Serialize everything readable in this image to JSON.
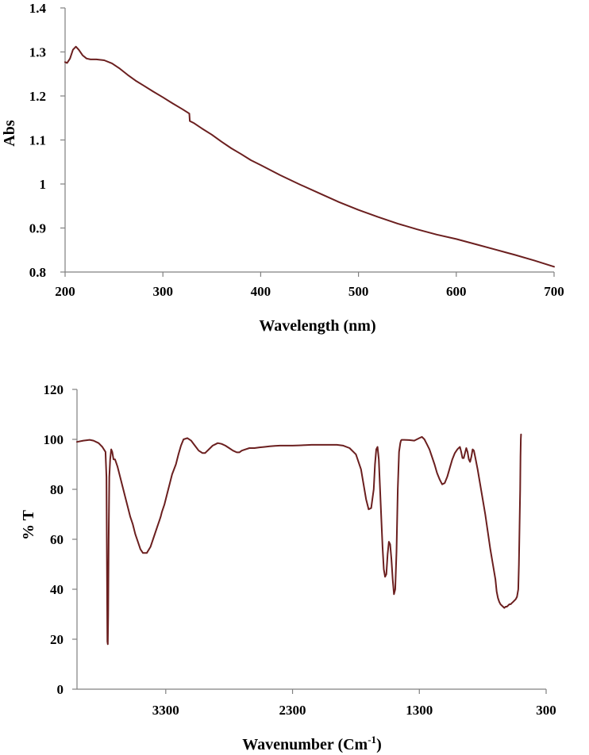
{
  "colors": {
    "series": "#6b1f1f",
    "axis": "#808080",
    "text": "#000000"
  },
  "chart_data": [
    {
      "type": "line",
      "title": "",
      "xlabel": "Wavelength (nm)",
      "ylabel": "Abs",
      "xlim": [
        200,
        700
      ],
      "ylim": [
        0.8,
        1.4
      ],
      "xticks": [
        200,
        300,
        400,
        500,
        600,
        700
      ],
      "yticks": [
        0.8,
        0.9,
        1.0,
        1.1,
        1.2,
        1.3,
        1.4
      ],
      "xtick_labels": [
        "200",
        "300",
        "400",
        "500",
        "600",
        "700"
      ],
      "ytick_labels": [
        "0.8",
        "0.9",
        "1",
        "1.1",
        "1.2",
        "1.3",
        "1.4"
      ],
      "grid": false,
      "legend": "none",
      "series": [
        {
          "x": [
            200,
            202,
            205,
            208,
            211,
            214,
            218,
            222,
            226,
            232,
            240,
            248,
            256,
            264,
            272,
            280,
            290,
            300,
            310,
            320,
            327,
            327.5,
            332,
            340,
            350,
            360,
            370,
            380,
            390,
            400,
            420,
            440,
            460,
            480,
            500,
            520,
            540,
            560,
            580,
            600,
            620,
            640,
            660,
            680,
            700
          ],
          "y": [
            1.277,
            1.275,
            1.285,
            1.305,
            1.312,
            1.305,
            1.292,
            1.285,
            1.283,
            1.283,
            1.281,
            1.274,
            1.262,
            1.248,
            1.235,
            1.224,
            1.21,
            1.197,
            1.183,
            1.17,
            1.16,
            1.143,
            1.138,
            1.126,
            1.112,
            1.096,
            1.081,
            1.068,
            1.054,
            1.043,
            1.02,
            0.999,
            0.979,
            0.959,
            0.941,
            0.925,
            0.91,
            0.897,
            0.885,
            0.875,
            0.863,
            0.851,
            0.839,
            0.826,
            0.812
          ]
        }
      ]
    },
    {
      "type": "line",
      "title": "",
      "xlabel": "Wavenumber (Cm",
      "xlabel_sup": "-1",
      "xlabel_close": ")",
      "ylabel": "% T",
      "xlim": [
        4000,
        300
      ],
      "ylim": [
        0,
        120
      ],
      "xticks": [
        3300,
        2300,
        1300,
        300
      ],
      "yticks": [
        0,
        20,
        40,
        60,
        80,
        100,
        120
      ],
      "xtick_labels": [
        "3300",
        "2300",
        "1300",
        "300"
      ],
      "ytick_labels": [
        "0",
        "20",
        "40",
        "60",
        "80",
        "100",
        "120"
      ],
      "grid": false,
      "legend": "none",
      "series": [
        {
          "x": [
            4000,
            3950,
            3900,
            3870,
            3830,
            3800,
            3775,
            3768,
            3763,
            3760,
            3757,
            3754,
            3750,
            3745,
            3738,
            3730,
            3722,
            3712,
            3700,
            3680,
            3660,
            3640,
            3620,
            3600,
            3580,
            3560,
            3540,
            3520,
            3500,
            3480,
            3450,
            3420,
            3400,
            3380,
            3360,
            3350,
            3340,
            3330,
            3310,
            3290,
            3270,
            3250,
            3220,
            3200,
            3180,
            3160,
            3130,
            3100,
            3070,
            3040,
            3010,
            2990,
            2960,
            2930,
            2910,
            2890,
            2860,
            2830,
            2800,
            2770,
            2740,
            2720,
            2700,
            2670,
            2640,
            2600,
            2560,
            2520,
            2480,
            2440,
            2400,
            2360,
            2320,
            2300,
            2250,
            2200,
            2150,
            2100,
            2050,
            2000,
            1950,
            1900,
            1850,
            1800,
            1760,
            1740,
            1720,
            1700,
            1680,
            1660,
            1650,
            1640,
            1630,
            1620,
            1610,
            1600,
            1590,
            1580,
            1570,
            1560,
            1550,
            1540,
            1530,
            1520,
            1510,
            1500,
            1490,
            1480,
            1470,
            1460,
            1450,
            1445,
            1440,
            1420,
            1380,
            1340,
            1300,
            1280,
            1260,
            1250,
            1240,
            1220,
            1200,
            1180,
            1160,
            1140,
            1120,
            1100,
            1080,
            1060,
            1040,
            1020,
            1000,
            990,
            980,
            970,
            960,
            950,
            940,
            930,
            920,
            910,
            900,
            890,
            880,
            870,
            860,
            840,
            820,
            800,
            780,
            760,
            740,
            720,
            700,
            690,
            680,
            670,
            660,
            650,
            640,
            630,
            620,
            610,
            600,
            590,
            580,
            570,
            560,
            550,
            540,
            530,
            520,
            515,
            510,
            505,
            502,
            500,
            498
          ],
          "y": [
            99,
            99.5,
            99.8,
            99.5,
            98.5,
            97,
            95,
            85,
            40,
            19,
            18,
            30,
            60,
            85,
            92,
            96,
            95,
            92,
            92,
            89,
            85,
            81,
            77,
            73,
            69,
            66,
            62,
            59,
            56,
            54.5,
            54.5,
            57,
            60,
            63,
            66,
            67.5,
            69,
            71,
            74,
            78,
            82,
            86,
            90,
            94,
            97.5,
            100,
            100.5,
            99.5,
            97.5,
            95.5,
            94.5,
            94.5,
            96,
            97.5,
            98,
            98.5,
            98.2,
            97.5,
            96.5,
            95.5,
            94.8,
            94.8,
            95.5,
            96,
            96.5,
            96.5,
            96.8,
            97,
            97.2,
            97.4,
            97.5,
            97.5,
            97.5,
            97.5,
            97.6,
            97.7,
            97.8,
            97.8,
            97.8,
            97.8,
            97.8,
            97.5,
            96.5,
            94,
            88,
            82,
            76,
            72,
            72.5,
            80,
            90,
            96,
            97,
            92,
            80,
            68,
            57,
            48,
            45,
            46,
            54,
            59,
            58,
            52,
            44,
            38,
            40,
            55,
            80,
            95,
            98.5,
            99.5,
            99.8,
            99.8,
            99.7,
            99.5,
            100.5,
            101,
            100,
            99,
            98,
            96,
            93,
            90,
            86.5,
            84,
            82,
            82.5,
            85,
            88.5,
            92,
            94.5,
            96,
            96.5,
            97,
            95,
            92.5,
            92.5,
            94.5,
            96.5,
            95,
            92,
            91,
            93,
            96,
            95.5,
            93,
            88,
            82,
            76,
            70,
            63,
            56,
            50,
            44,
            39,
            36.5,
            35,
            34,
            33.5,
            33,
            32.5,
            33,
            33,
            33.5,
            34,
            34,
            34.5,
            35,
            35.5,
            36,
            37,
            40,
            50,
            65,
            80,
            93,
            100,
            102
          ]
        }
      ]
    }
  ]
}
